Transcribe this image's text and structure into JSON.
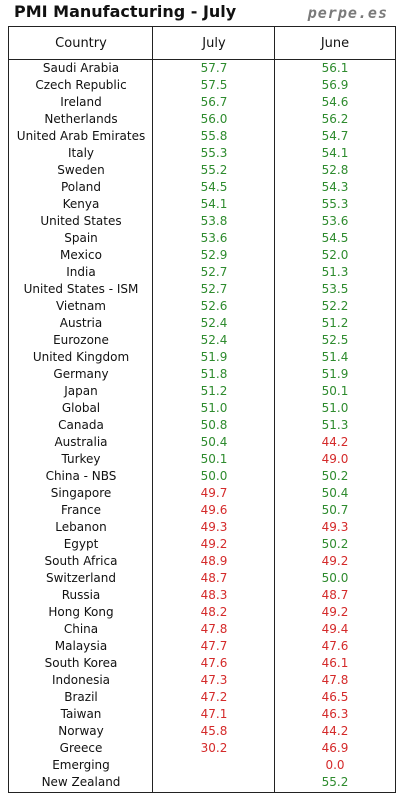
{
  "header": {
    "title": "PMI Manufacturing - July",
    "brand": "perpe.es"
  },
  "colors": {
    "above_50": "#2e8b2e",
    "below_50": "#d42a2a"
  },
  "chart_data": {
    "type": "table",
    "columns": [
      "Country",
      "July",
      "June"
    ],
    "threshold": 50,
    "rows": [
      {
        "country": "Saudi Arabia",
        "july": "57.7",
        "june": "56.1"
      },
      {
        "country": "Czech Republic",
        "july": "57.5",
        "june": "56.9"
      },
      {
        "country": "Ireland",
        "july": "56.7",
        "june": "54.6"
      },
      {
        "country": "Netherlands",
        "july": "56.0",
        "june": "56.2"
      },
      {
        "country": "United Arab Emirates",
        "july": "55.8",
        "june": "54.7"
      },
      {
        "country": "Italy",
        "july": "55.3",
        "june": "54.1"
      },
      {
        "country": "Sweden",
        "july": "55.2",
        "june": "52.8"
      },
      {
        "country": "Poland",
        "july": "54.5",
        "june": "54.3"
      },
      {
        "country": "Kenya",
        "july": "54.1",
        "june": "55.3"
      },
      {
        "country": "United States",
        "july": "53.8",
        "june": "53.6"
      },
      {
        "country": "Spain",
        "july": "53.6",
        "june": "54.5"
      },
      {
        "country": "Mexico",
        "july": "52.9",
        "june": "52.0"
      },
      {
        "country": "India",
        "july": "52.7",
        "june": "51.3"
      },
      {
        "country": "United States - ISM",
        "july": "52.7",
        "june": "53.5"
      },
      {
        "country": "Vietnam",
        "july": "52.6",
        "june": "52.2"
      },
      {
        "country": "Austria",
        "july": "52.4",
        "june": "51.2"
      },
      {
        "country": "Eurozone",
        "july": "52.4",
        "june": "52.5"
      },
      {
        "country": "United Kingdom",
        "july": "51.9",
        "june": "51.4"
      },
      {
        "country": "Germany",
        "july": "51.8",
        "june": "51.9"
      },
      {
        "country": "Japan",
        "july": "51.2",
        "june": "50.1"
      },
      {
        "country": "Global",
        "july": "51.0",
        "june": "51.0"
      },
      {
        "country": "Canada",
        "july": "50.8",
        "june": "51.3"
      },
      {
        "country": "Australia",
        "july": "50.4",
        "june": "44.2"
      },
      {
        "country": "Turkey",
        "july": "50.1",
        "june": "49.0"
      },
      {
        "country": "China - NBS",
        "july": "50.0",
        "june": "50.2"
      },
      {
        "country": "Singapore",
        "july": "49.7",
        "june": "50.4"
      },
      {
        "country": "France",
        "july": "49.6",
        "june": "50.7"
      },
      {
        "country": "Lebanon",
        "july": "49.3",
        "june": "49.3"
      },
      {
        "country": "Egypt",
        "july": "49.2",
        "june": "50.2"
      },
      {
        "country": "South Africa",
        "july": "48.9",
        "june": "49.2"
      },
      {
        "country": "Switzerland",
        "july": "48.7",
        "june": "50.0"
      },
      {
        "country": "Russia",
        "july": "48.3",
        "june": "48.7"
      },
      {
        "country": "Hong Kong",
        "july": "48.2",
        "june": "49.2"
      },
      {
        "country": "China",
        "july": "47.8",
        "june": "49.4"
      },
      {
        "country": "Malaysia",
        "july": "47.7",
        "june": "47.6"
      },
      {
        "country": "South Korea",
        "july": "47.6",
        "june": "46.1"
      },
      {
        "country": "Indonesia",
        "july": "47.3",
        "june": "47.8"
      },
      {
        "country": "Brazil",
        "july": "47.2",
        "june": "46.5"
      },
      {
        "country": "Taiwan",
        "july": "47.1",
        "june": "46.3"
      },
      {
        "country": "Norway",
        "july": "45.8",
        "june": "44.2"
      },
      {
        "country": "Greece",
        "july": "30.2",
        "june": "46.9"
      },
      {
        "country": "Emerging",
        "july": "",
        "june": "0.0"
      },
      {
        "country": "New Zealand",
        "july": "",
        "june": "55.2"
      }
    ]
  }
}
